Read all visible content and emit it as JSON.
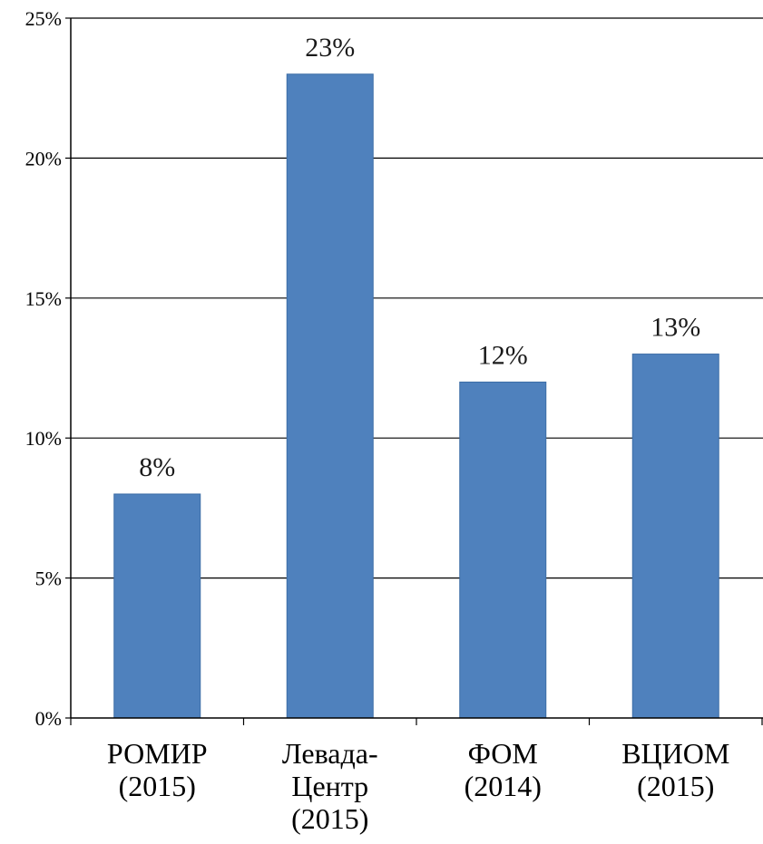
{
  "chart_data": {
    "type": "bar",
    "categories": [
      [
        "РОМИР",
        "(2015)"
      ],
      [
        "Левада-",
        "Центр",
        "(2015)"
      ],
      [
        "ФОМ",
        "(2014)"
      ],
      [
        "ВЦИОМ",
        "(2015)"
      ]
    ],
    "values": [
      8,
      23,
      12,
      13
    ],
    "data_labels": [
      "8%",
      "23%",
      "12%",
      "13%"
    ],
    "y_ticks": [
      0,
      5,
      10,
      15,
      20,
      25
    ],
    "y_tick_labels": [
      "0%",
      "5%",
      "10%",
      "15%",
      "20%",
      "25%"
    ],
    "ylim": [
      0,
      25
    ],
    "grid": true,
    "bar_color": "#4f81bd",
    "title": "",
    "xlabel": "",
    "ylabel": ""
  }
}
